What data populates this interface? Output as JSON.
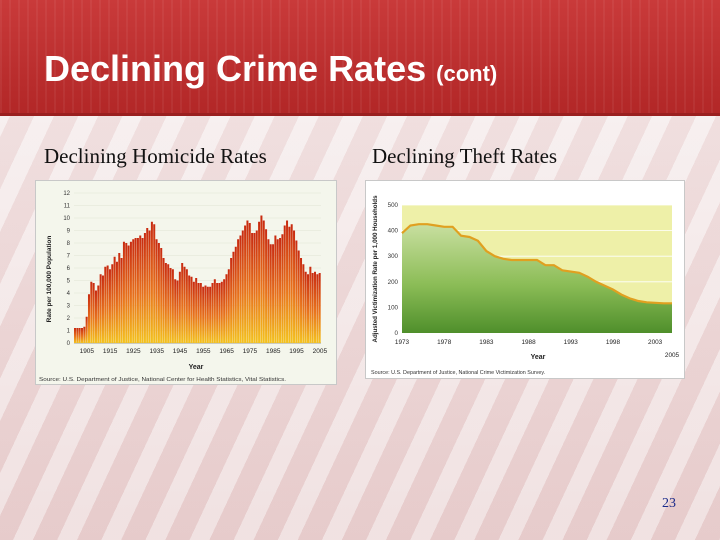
{
  "slide": {
    "title": "Declining Crime Rates",
    "title_suffix": "(cont)",
    "left_heading": "Declining Homicide Rates",
    "right_heading": "Declining Theft Rates",
    "page_number": "23"
  },
  "chart_data": [
    {
      "type": "bar",
      "ylabel": "Rate per 100,000 Population",
      "xlabel": "Year",
      "source": "Source: U.S. Department of Justice, National Center for Health Statistics, Vital Statistics.",
      "ylim": [
        0,
        12
      ],
      "yticks": [
        "0",
        "1",
        "2",
        "3",
        "4",
        "5",
        "6",
        "7",
        "8",
        "9",
        "10",
        "11",
        "12"
      ],
      "x_ticks": [
        "1905",
        "1915",
        "1925",
        "1935",
        "1945",
        "1955",
        "1965",
        "1975",
        "1985",
        "1995",
        "2005"
      ],
      "x": [
        1900,
        1901,
        1902,
        1903,
        1904,
        1905,
        1906,
        1907,
        1908,
        1909,
        1910,
        1911,
        1912,
        1913,
        1914,
        1915,
        1916,
        1917,
        1918,
        1919,
        1920,
        1921,
        1922,
        1923,
        1924,
        1925,
        1926,
        1927,
        1928,
        1929,
        1930,
        1931,
        1932,
        1933,
        1934,
        1935,
        1936,
        1937,
        1938,
        1939,
        1940,
        1941,
        1942,
        1943,
        1944,
        1945,
        1946,
        1947,
        1948,
        1949,
        1950,
        1951,
        1952,
        1953,
        1954,
        1955,
        1956,
        1957,
        1958,
        1959,
        1960,
        1961,
        1962,
        1963,
        1964,
        1965,
        1966,
        1967,
        1968,
        1969,
        1970,
        1971,
        1972,
        1973,
        1974,
        1975,
        1976,
        1977,
        1978,
        1979,
        1980,
        1981,
        1982,
        1983,
        1984,
        1985,
        1986,
        1987,
        1988,
        1989,
        1990,
        1991,
        1992,
        1993,
        1994,
        1995,
        1996,
        1997,
        1998,
        1999,
        2000,
        2001,
        2002,
        2003,
        2004,
        2005
      ],
      "values": [
        1.2,
        1.2,
        1.2,
        1.2,
        1.3,
        2.1,
        3.9,
        4.9,
        4.8,
        4.2,
        4.6,
        5.5,
        5.4,
        6.1,
        6.2,
        5.9,
        6.3,
        6.9,
        6.5,
        7.2,
        6.8,
        8.1,
        8.0,
        7.8,
        8.1,
        8.3,
        8.4,
        8.4,
        8.6,
        8.4,
        8.8,
        9.2,
        9.0,
        9.7,
        9.5,
        8.3,
        8.0,
        7.6,
        6.8,
        6.4,
        6.3,
        6.0,
        5.9,
        5.1,
        5.0,
        5.7,
        6.4,
        6.1,
        5.9,
        5.4,
        5.3,
        4.9,
        5.2,
        4.8,
        4.8,
        4.5,
        4.6,
        4.5,
        4.5,
        4.8,
        5.1,
        4.8,
        4.8,
        4.9,
        5.1,
        5.5,
        5.9,
        6.8,
        7.3,
        7.7,
        8.3,
        8.6,
        9.0,
        9.4,
        9.8,
        9.6,
        8.8,
        8.8,
        9.0,
        9.7,
        10.2,
        9.8,
        9.1,
        8.3,
        7.9,
        7.9,
        8.6,
        8.3,
        8.4,
        8.7,
        9.4,
        9.8,
        9.3,
        9.5,
        9.0,
        8.2,
        7.4,
        6.8,
        6.3,
        5.7,
        5.5,
        6.1,
        5.6,
        5.7,
        5.5,
        5.6
      ]
    },
    {
      "type": "area",
      "ylabel": "Adjusted Victimization Rate per 1,000 Households",
      "xlabel": "Year",
      "source": "Source: U.S. Department of Justice, National Crime Victimization Survey.",
      "ylim": [
        0,
        500
      ],
      "yticks": [
        "0",
        "100",
        "200",
        "300",
        "400",
        "500"
      ],
      "x_ticks": [
        "1973",
        "1978",
        "1983",
        "1988",
        "1993",
        "1998",
        "2003",
        "2005"
      ],
      "x": [
        1973,
        1974,
        1975,
        1976,
        1977,
        1978,
        1979,
        1980,
        1981,
        1982,
        1983,
        1984,
        1985,
        1986,
        1987,
        1988,
        1989,
        1990,
        1991,
        1992,
        1993,
        1994,
        1995,
        1996,
        1997,
        1998,
        1999,
        2000,
        2001,
        2002,
        2003,
        2004,
        2005
      ],
      "values": [
        390,
        420,
        425,
        425,
        420,
        415,
        415,
        380,
        375,
        360,
        320,
        300,
        290,
        285,
        285,
        285,
        285,
        265,
        265,
        245,
        240,
        235,
        220,
        200,
        185,
        170,
        150,
        135,
        125,
        120,
        118,
        116,
        116
      ]
    }
  ]
}
